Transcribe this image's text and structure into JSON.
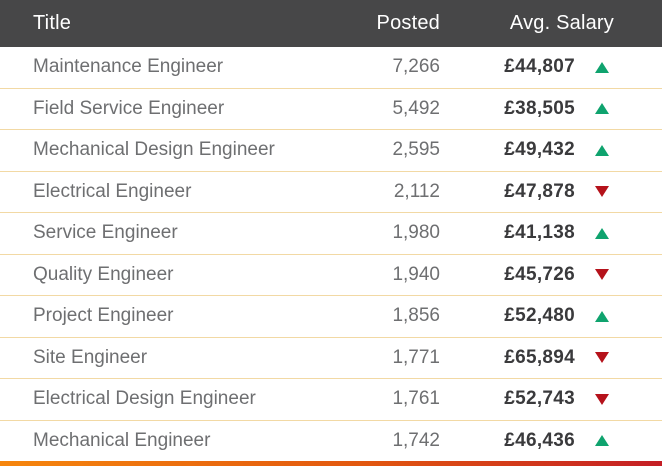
{
  "chart_data": {
    "type": "table",
    "columns": [
      "Title",
      "Posted",
      "Avg. Salary"
    ],
    "rows": [
      {
        "title": "Maintenance Engineer",
        "posted": "7,266",
        "salary": "£44,807",
        "trend": "up"
      },
      {
        "title": "Field Service Engineer",
        "posted": "5,492",
        "salary": "£38,505",
        "trend": "up"
      },
      {
        "title": "Mechanical Design Engineer",
        "posted": "2,595",
        "salary": "£49,432",
        "trend": "up"
      },
      {
        "title": "Electrical Engineer",
        "posted": "2,112",
        "salary": "£47,878",
        "trend": "down"
      },
      {
        "title": "Service Engineer",
        "posted": "1,980",
        "salary": "£41,138",
        "trend": "up"
      },
      {
        "title": "Quality Engineer",
        "posted": "1,940",
        "salary": "£45,726",
        "trend": "down"
      },
      {
        "title": "Project Engineer",
        "posted": "1,856",
        "salary": "£52,480",
        "trend": "up"
      },
      {
        "title": "Site Engineer",
        "posted": "1,771",
        "salary": "£65,894",
        "trend": "down"
      },
      {
        "title": "Electrical Design Engineer",
        "posted": "1,761",
        "salary": "£52,743",
        "trend": "down"
      },
      {
        "title": "Mechanical  Engineer",
        "posted": "1,742",
        "salary": "£46,436",
        "trend": "up"
      }
    ]
  },
  "colors": {
    "header_bg": "#474748",
    "header_text": "#ffffff",
    "body_text": "#6e6f71",
    "salary_text": "#3a3a3c",
    "trend_up": "#0fa36e",
    "trend_down": "#b5121b",
    "row_separator": "#f2d9a4",
    "accent_gradient_start": "#f6860d",
    "accent_gradient_end": "#c41e25"
  }
}
